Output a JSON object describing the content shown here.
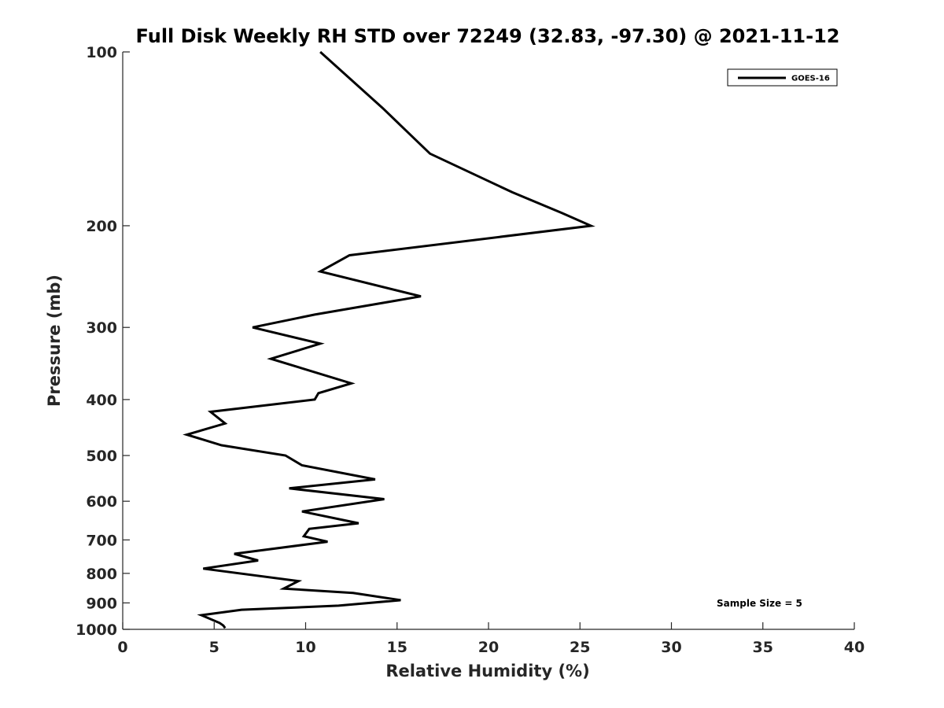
{
  "chart_data": {
    "type": "line",
    "title": "Full Disk Weekly RH STD over 72249 (32.83, -97.30) @ 2021-11-12",
    "xlabel": "Relative Humidity (%)",
    "ylabel": "Pressure (mb)",
    "xlim": [
      0,
      40
    ],
    "ylim": [
      100,
      1000
    ],
    "y_scale": "log",
    "y_reversed": true,
    "grid": false,
    "legend_position": "top-right",
    "x_ticks": [
      0,
      5,
      10,
      15,
      20,
      25,
      30,
      35,
      40
    ],
    "y_ticks": [
      100,
      200,
      300,
      400,
      500,
      600,
      700,
      800,
      900,
      1000
    ],
    "annotation": "Sample Size = 5",
    "series": [
      {
        "name": "GOES-16",
        "color": "#000000",
        "points": [
          [
            10.8,
            100
          ],
          [
            14.2,
            125
          ],
          [
            16.8,
            150
          ],
          [
            21.3,
            175
          ],
          [
            24.0,
            190
          ],
          [
            25.6,
            200
          ],
          [
            12.4,
            225
          ],
          [
            10.8,
            240
          ],
          [
            16.3,
            265
          ],
          [
            10.5,
            285
          ],
          [
            7.1,
            300
          ],
          [
            10.8,
            320
          ],
          [
            8.1,
            340
          ],
          [
            12.5,
            375
          ],
          [
            10.7,
            390
          ],
          [
            10.5,
            400
          ],
          [
            4.8,
            420
          ],
          [
            5.6,
            440
          ],
          [
            3.5,
            460
          ],
          [
            5.4,
            480
          ],
          [
            8.9,
            500
          ],
          [
            9.8,
            520
          ],
          [
            13.8,
            550
          ],
          [
            9.1,
            570
          ],
          [
            14.3,
            595
          ],
          [
            9.8,
            625
          ],
          [
            12.9,
            655
          ],
          [
            10.2,
            670
          ],
          [
            9.9,
            690
          ],
          [
            11.2,
            705
          ],
          [
            6.1,
            740
          ],
          [
            7.4,
            760
          ],
          [
            4.4,
            785
          ],
          [
            9.6,
            825
          ],
          [
            8.8,
            850
          ],
          [
            12.6,
            865
          ],
          [
            15.2,
            890
          ],
          [
            11.8,
            910
          ],
          [
            6.5,
            925
          ],
          [
            4.3,
            945
          ],
          [
            5.3,
            975
          ],
          [
            5.5,
            985
          ],
          [
            5.6,
            995
          ]
        ]
      }
    ]
  }
}
